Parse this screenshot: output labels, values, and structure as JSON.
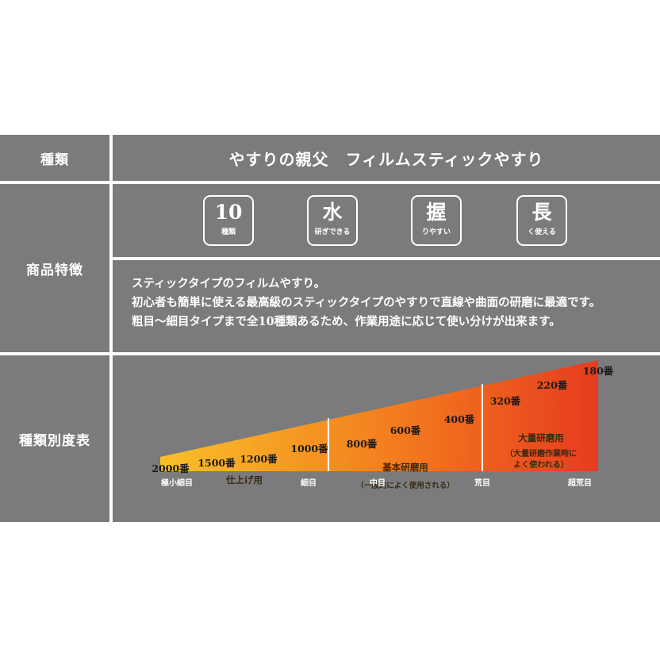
{
  "rows": {
    "type": {
      "label": "種類",
      "value": "やすりの親父　フィルムスティックやすり"
    },
    "features": {
      "label": "商品特徴",
      "badges": [
        {
          "glyph": "10",
          "sub": "種類"
        },
        {
          "glyph": "水",
          "sub": "研ぎできる"
        },
        {
          "glyph": "握",
          "sub": "りやすい"
        },
        {
          "glyph": "長",
          "sub": "く使える"
        }
      ],
      "description": [
        "スティックタイプのフィルムやすり。",
        "初心者も簡単に使える最高級のスティックタイプのやすりで直線や曲面の研磨に最適です。",
        "粗目～細目タイプまで全10種類あるため、作業用途に応じて使い分けが出来ます。"
      ]
    },
    "grit_table": {
      "label": "種類別度表"
    }
  },
  "chart_data": {
    "type": "area",
    "grits": [
      {
        "label": "2000番",
        "grit": 2000
      },
      {
        "label": "1500番",
        "grit": 1500
      },
      {
        "label": "1200番",
        "grit": 1200
      },
      {
        "label": "1000番",
        "grit": 1000
      },
      {
        "label": "800番",
        "grit": 800
      },
      {
        "label": "600番",
        "grit": 600
      },
      {
        "label": "400番",
        "grit": 400
      },
      {
        "label": "320番",
        "grit": 320
      },
      {
        "label": "220番",
        "grit": 220
      },
      {
        "label": "180番",
        "grit": 180
      }
    ],
    "segments": [
      {
        "name": "仕上げ用",
        "note": "",
        "from_grit": 2000,
        "to_grit": 1000,
        "color": "#f5a623"
      },
      {
        "name": "基本研磨用",
        "note": "（一般的によく使用される）",
        "from_grit": 800,
        "to_grit": 400,
        "color": "#f47f1f"
      },
      {
        "name": "大量研磨用",
        "note": "（大量研磨作業時によく使われる）",
        "from_grit": 320,
        "to_grit": 180,
        "color": "#e94b22"
      }
    ],
    "axis_labels": [
      "極小細目",
      "細目",
      "中目",
      "荒目",
      "超荒目"
    ],
    "colors": {
      "start": "#f9c02a",
      "end": "#e63b1f"
    }
  }
}
